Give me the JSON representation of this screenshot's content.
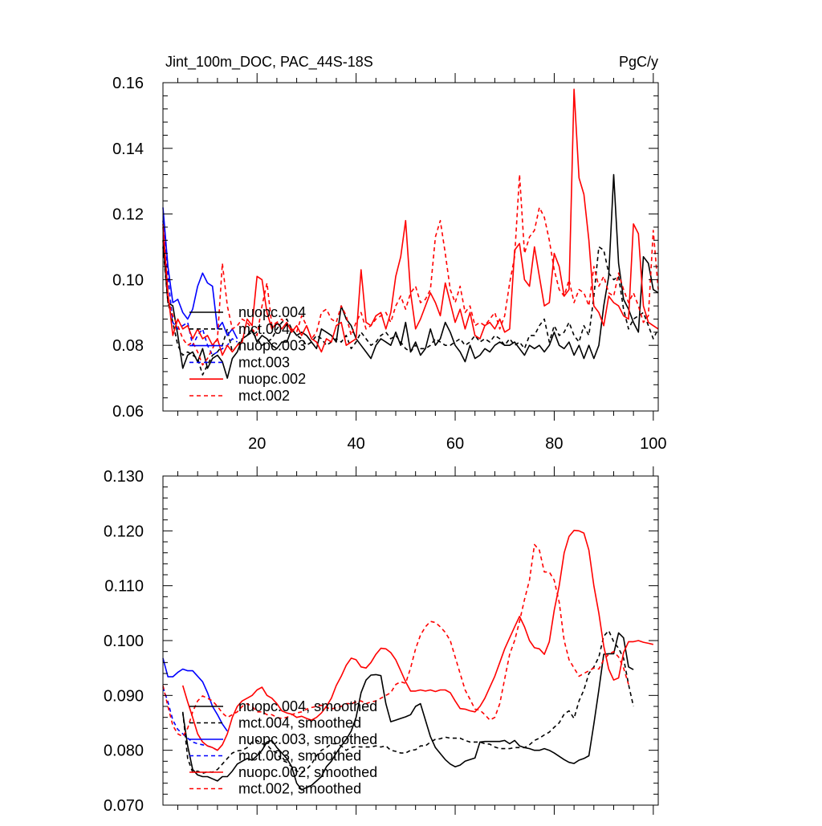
{
  "chart_data": [
    {
      "type": "line",
      "title": "Jint_100m_DOC, PAC_44S-18S",
      "units": "PgC/y",
      "xlabel": "",
      "ylabel": "",
      "xlim": [
        1,
        101
      ],
      "ylim": [
        0.06,
        0.16
      ],
      "x_ticks": [
        20,
        40,
        60,
        80,
        100
      ],
      "y_ticks": [
        0.06,
        0.08,
        0.1,
        0.12,
        0.14,
        0.16
      ],
      "y_tick_labels": [
        "0.06",
        "0.08",
        "0.10",
        "0.12",
        "0.14",
        "0.16"
      ],
      "legend_position": "bottom-left",
      "series": [
        {
          "name": "nuopc.004",
          "color": "#000000",
          "dash": "solid",
          "x_start": 1,
          "values": [
            0.112,
            0.093,
            0.092,
            0.083,
            0.073,
            0.077,
            0.078,
            0.075,
            0.079,
            0.073,
            0.076,
            0.077,
            0.075,
            0.07,
            0.076,
            0.078,
            0.082,
            0.083,
            0.085,
            0.081,
            0.083,
            0.082,
            0.08,
            0.079,
            0.081,
            0.081,
            0.085,
            0.083,
            0.084,
            0.083,
            0.081,
            0.079,
            0.085,
            0.084,
            0.083,
            0.081,
            0.092,
            0.088,
            0.086,
            0.082,
            0.08,
            0.078,
            0.076,
            0.08,
            0.082,
            0.081,
            0.08,
            0.084,
            0.08,
            0.087,
            0.078,
            0.081,
            0.077,
            0.079,
            0.085,
            0.08,
            0.082,
            0.087,
            0.084,
            0.08,
            0.078,
            0.075,
            0.08,
            0.076,
            0.077,
            0.079,
            0.078,
            0.08,
            0.081,
            0.08,
            0.08,
            0.081,
            0.079,
            0.077,
            0.08,
            0.079,
            0.08,
            0.078,
            0.08,
            0.084,
            0.08,
            0.079,
            0.081,
            0.077,
            0.08,
            0.076,
            0.08,
            0.076,
            0.08,
            0.092,
            0.101,
            0.132,
            0.105,
            0.094,
            0.091,
            0.087,
            0.084,
            0.107,
            0.105,
            0.097,
            0.096
          ]
        },
        {
          "name": "mct.004",
          "color": "#000000",
          "dash": "dashed",
          "x_start": 1,
          "values": [
            0.11,
            0.093,
            0.087,
            0.08,
            0.077,
            0.078,
            0.077,
            0.076,
            0.071,
            0.074,
            0.077,
            0.078,
            0.08,
            0.085,
            0.078,
            0.08,
            0.082,
            0.083,
            0.084,
            0.082,
            0.08,
            0.081,
            0.082,
            0.085,
            0.087,
            0.088,
            0.085,
            0.083,
            0.082,
            0.08,
            0.081,
            0.083,
            0.082,
            0.08,
            0.081,
            0.082,
            0.081,
            0.083,
            0.079,
            0.081,
            0.084,
            0.082,
            0.08,
            0.081,
            0.083,
            0.084,
            0.082,
            0.083,
            0.081,
            0.079,
            0.078,
            0.08,
            0.079,
            0.079,
            0.08,
            0.082,
            0.081,
            0.08,
            0.08,
            0.081,
            0.082,
            0.08,
            0.081,
            0.083,
            0.081,
            0.082,
            0.081,
            0.083,
            0.082,
            0.08,
            0.082,
            0.08,
            0.081,
            0.079,
            0.083,
            0.083,
            0.086,
            0.088,
            0.081,
            0.086,
            0.083,
            0.084,
            0.087,
            0.083,
            0.081,
            0.086,
            0.083,
            0.095,
            0.11,
            0.109,
            0.102,
            0.1,
            0.101,
            0.091,
            0.085,
            0.088,
            0.089,
            0.09,
            0.086,
            0.082,
            0.085
          ]
        },
        {
          "name": "nuopc.003",
          "color": "#0000ff",
          "dash": "solid",
          "x_start": 1,
          "values": [
            0.122,
            0.104,
            0.093,
            0.094,
            0.09,
            0.088,
            0.091,
            0.098,
            0.102,
            0.099,
            0.098,
            0.085,
            0.087,
            0.083,
            0.085,
            0.082
          ]
        },
        {
          "name": "mct.003",
          "color": "#0000ff",
          "dash": "dashed",
          "x_start": 1,
          "values": [
            0.118,
            0.101,
            0.087,
            0.085,
            0.086,
            0.087,
            0.08,
            0.083,
            0.085,
            0.08,
            0.077,
            0.078,
            0.079,
            0.08,
            0.082,
            0.081
          ]
        },
        {
          "name": "nuopc.002",
          "color": "#ff0000",
          "dash": "solid",
          "x_start": 1,
          "values": [
            0.117,
            0.096,
            0.083,
            0.088,
            0.085,
            0.086,
            0.082,
            0.085,
            0.082,
            0.083,
            0.08,
            0.082,
            0.077,
            0.08,
            0.078,
            0.08,
            0.081,
            0.088,
            0.086,
            0.101,
            0.1,
            0.09,
            0.085,
            0.087,
            0.085,
            0.087,
            0.084,
            0.086,
            0.083,
            0.086,
            0.082,
            0.081,
            0.078,
            0.082,
            0.081,
            0.086,
            0.087,
            0.08,
            0.081,
            0.082,
            0.103,
            0.087,
            0.086,
            0.089,
            0.09,
            0.085,
            0.09,
            0.101,
            0.107,
            0.118,
            0.096,
            0.085,
            0.088,
            0.092,
            0.096,
            0.093,
            0.089,
            0.099,
            0.093,
            0.087,
            0.091,
            0.085,
            0.09,
            0.083,
            0.082,
            0.086,
            0.087,
            0.085,
            0.088,
            0.084,
            0.085,
            0.109,
            0.111,
            0.1,
            0.098,
            0.11,
            0.101,
            0.092,
            0.093,
            0.108,
            0.104,
            0.095,
            0.097,
            0.158,
            0.131,
            0.126,
            0.112,
            0.092,
            0.09,
            0.086,
            0.095,
            0.093,
            0.092,
            0.089,
            0.088,
            0.117,
            0.114,
            0.092,
            0.087,
            0.086,
            0.085
          ]
        },
        {
          "name": "mct.002",
          "color": "#ff0000",
          "dash": "dashed",
          "x_start": 1,
          "values": [
            0.116,
            0.094,
            0.089,
            0.086,
            0.082,
            0.08,
            0.081,
            0.078,
            0.074,
            0.076,
            0.079,
            0.082,
            0.105,
            0.092,
            0.085,
            0.086,
            0.088,
            0.087,
            0.085,
            0.083,
            0.092,
            0.099,
            0.086,
            0.087,
            0.088,
            0.086,
            0.085,
            0.084,
            0.089,
            0.086,
            0.082,
            0.084,
            0.09,
            0.091,
            0.088,
            0.087,
            0.092,
            0.089,
            0.083,
            0.087,
            0.09,
            0.085,
            0.086,
            0.088,
            0.089,
            0.09,
            0.087,
            0.092,
            0.095,
            0.091,
            0.096,
            0.098,
            0.093,
            0.094,
            0.097,
            0.113,
            0.118,
            0.108,
            0.097,
            0.093,
            0.098,
            0.09,
            0.092,
            0.086,
            0.087,
            0.086,
            0.088,
            0.09,
            0.085,
            0.089,
            0.099,
            0.107,
            0.132,
            0.108,
            0.113,
            0.115,
            0.122,
            0.119,
            0.112,
            0.103,
            0.097,
            0.095,
            0.1,
            0.093,
            0.097,
            0.096,
            0.092,
            0.104,
            0.098,
            0.101,
            0.096,
            0.095,
            0.102,
            0.097,
            0.093,
            0.096,
            0.092,
            0.087,
            0.089,
            0.115,
            0.097
          ]
        }
      ]
    },
    {
      "type": "line",
      "title": "",
      "xlabel": "",
      "ylabel": "",
      "xlim": [
        1,
        101
      ],
      "ylim": [
        0.07,
        0.13
      ],
      "x_ticks": [
        20,
        40,
        60,
        80,
        100
      ],
      "y_ticks": [
        0.07,
        0.08,
        0.09,
        0.1,
        0.11,
        0.12,
        0.13
      ],
      "y_tick_labels": [
        "0.070",
        "0.080",
        "0.090",
        "0.100",
        "0.110",
        "0.120",
        "0.130"
      ],
      "legend_position": "bottom-left",
      "series": [
        {
          "name": "nuopc.004, smoothed",
          "color": "#000000",
          "dash": "solid",
          "x_start": 5,
          "values": [
            0.0868,
            0.0808,
            0.0765,
            0.0755,
            0.0752,
            0.0752,
            0.0748,
            0.0744,
            0.0752,
            0.0752,
            0.0762,
            0.0775,
            0.078,
            0.0785,
            0.0782,
            0.079,
            0.08,
            0.0815,
            0.0818,
            0.0805,
            0.0795,
            0.0785,
            0.077,
            0.074,
            0.0728,
            0.0732,
            0.0736,
            0.0744,
            0.0752,
            0.077,
            0.078,
            0.0795,
            0.0808,
            0.082,
            0.0835,
            0.086,
            0.0905,
            0.0928,
            0.0937,
            0.0938,
            0.0936,
            0.0885,
            0.0852,
            0.0855,
            0.0858,
            0.0861,
            0.0865,
            0.088,
            0.0885,
            0.0855,
            0.0825,
            0.0805,
            0.0794,
            0.0783,
            0.0775,
            0.077,
            0.0773,
            0.078,
            0.0783,
            0.0786,
            0.0815,
            0.0816,
            0.0816,
            0.0816,
            0.0816,
            0.0818,
            0.0812,
            0.0818,
            0.0808,
            0.0805,
            0.0803,
            0.08,
            0.08,
            0.0803,
            0.08,
            0.0795,
            0.0789,
            0.0783,
            0.0778,
            0.0776,
            0.0782,
            0.0785,
            0.079,
            0.0848,
            0.091,
            0.0975,
            0.0976,
            0.0976,
            0.1014,
            0.1005,
            0.0952,
            0.0947
          ]
        },
        {
          "name": "mct.004, smoothed",
          "color": "#000000",
          "dash": "dashed",
          "x_start": 5,
          "values": [
            0.087,
            0.0785,
            0.076,
            0.0762,
            0.0758,
            0.0761,
            0.076,
            0.0765,
            0.0775,
            0.0785,
            0.0795,
            0.0799,
            0.08,
            0.0805,
            0.0815,
            0.0818,
            0.0812,
            0.081,
            0.08,
            0.0795,
            0.0782,
            0.0778,
            0.077,
            0.0762,
            0.076,
            0.0765,
            0.0775,
            0.079,
            0.08,
            0.0805,
            0.0812,
            0.0812,
            0.0808,
            0.08,
            0.0805,
            0.0807,
            0.0806,
            0.0806,
            0.0806,
            0.0808,
            0.0806,
            0.0808,
            0.08,
            0.0798,
            0.0795,
            0.0795,
            0.08,
            0.0801,
            0.0808,
            0.0808,
            0.0815,
            0.082,
            0.0821,
            0.0824,
            0.0822,
            0.0822,
            0.0822,
            0.0818,
            0.0815,
            0.0815,
            0.0815,
            0.0812,
            0.0811,
            0.0806,
            0.0803,
            0.0803,
            0.0803,
            0.0805,
            0.0805,
            0.0805,
            0.081,
            0.0818,
            0.0822,
            0.0828,
            0.0833,
            0.0842,
            0.085,
            0.0866,
            0.0872,
            0.0858,
            0.089,
            0.091,
            0.094,
            0.0952,
            0.097,
            0.1008,
            0.1018,
            0.0998,
            0.0986,
            0.0968,
            0.092,
            0.088
          ]
        },
        {
          "name": "nuopc.003, smoothed",
          "color": "#0000ff",
          "dash": "solid",
          "x_start": 1,
          "values": [
            0.0968,
            0.0934,
            0.0934,
            0.0942,
            0.0948,
            0.0945,
            0.0945,
            0.0935,
            0.0925,
            0.0905,
            0.088,
            0.0865,
            0.0848,
            0.0835
          ]
        },
        {
          "name": "mct.003, smoothed",
          "color": "#0000ff",
          "dash": "dashed",
          "x_start": 1,
          "values": [
            0.0915,
            0.0888,
            0.0855,
            0.0838,
            0.083,
            0.0822,
            0.0815,
            0.0812,
            0.081,
            0.0808,
            0.0805,
            0.08
          ]
        },
        {
          "name": "nuopc.002, smoothed",
          "color": "#ff0000",
          "dash": "solid",
          "x_start": 5,
          "values": [
            0.0918,
            0.0888,
            0.086,
            0.083,
            0.0815,
            0.0808,
            0.0805,
            0.08,
            0.081,
            0.083,
            0.086,
            0.088,
            0.089,
            0.0895,
            0.09,
            0.091,
            0.0915,
            0.09,
            0.0895,
            0.0885,
            0.0872,
            0.0868,
            0.0866,
            0.086,
            0.0862,
            0.0858,
            0.0855,
            0.086,
            0.0868,
            0.088,
            0.0895,
            0.0918,
            0.0935,
            0.0955,
            0.0968,
            0.0965,
            0.0952,
            0.095,
            0.096,
            0.0975,
            0.0986,
            0.0985,
            0.0978,
            0.0965,
            0.0945,
            0.0925,
            0.0908,
            0.0908,
            0.091,
            0.0908,
            0.091,
            0.0907,
            0.091,
            0.091,
            0.0905,
            0.089,
            0.0876,
            0.0875,
            0.0872,
            0.087,
            0.088,
            0.0895,
            0.0915,
            0.0935,
            0.096,
            0.0985,
            0.1005,
            0.1025,
            0.1044,
            0.1025,
            0.1,
            0.0987,
            0.0985,
            0.0975,
            0.0998,
            0.1055,
            0.11,
            0.116,
            0.119,
            0.1201,
            0.12,
            0.1196,
            0.1165,
            0.11,
            0.105,
            0.099,
            0.0948,
            0.0928,
            0.0932,
            0.0978,
            0.0998,
            0.0998,
            0.1,
            0.0997,
            0.0995,
            0.0993
          ]
        },
        {
          "name": "mct.002, smoothed",
          "color": "#ff0000",
          "dash": "dashed",
          "x_start": 1,
          "values": [
            0.0918,
            0.088,
            0.0845,
            0.083,
            0.0825,
            0.084,
            0.087,
            0.089,
            0.0899,
            0.0895,
            0.089,
            0.088,
            0.0868,
            0.086,
            0.0865,
            0.087,
            0.088,
            0.0885,
            0.088,
            0.087,
            0.087,
            0.0865,
            0.0865,
            0.086,
            0.0858,
            0.086,
            0.0865,
            0.0868,
            0.087,
            0.0875,
            0.0878,
            0.088,
            0.0882,
            0.0878,
            0.0875,
            0.0878,
            0.088,
            0.0885,
            0.0885,
            0.0888,
            0.089,
            0.0885,
            0.0888,
            0.089,
            0.0895,
            0.09,
            0.0905,
            0.092,
            0.0925,
            0.0922,
            0.095,
            0.0985,
            0.101,
            0.1025,
            0.1035,
            0.1033,
            0.1025,
            0.1015,
            0.1,
            0.097,
            0.094,
            0.091,
            0.0893,
            0.0875,
            0.0873,
            0.0865,
            0.0855,
            0.086,
            0.0885,
            0.093,
            0.0975,
            0.1,
            0.1035,
            0.1075,
            0.111,
            0.1175,
            0.1165,
            0.1125,
            0.1125,
            0.111,
            0.107,
            0.1,
            0.0965,
            0.095,
            0.0935,
            0.094,
            0.0945,
            0.095,
            0.0948,
            0.0965,
            0.0975,
            0.098,
            0.097,
            0.095,
            0.092
          ]
        }
      ]
    }
  ]
}
